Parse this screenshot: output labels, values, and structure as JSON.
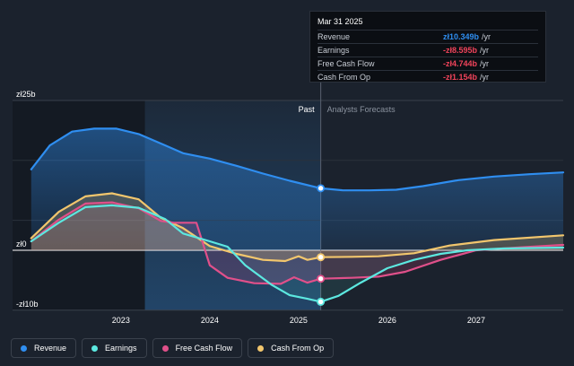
{
  "chart_data": {
    "type": "area",
    "y_ticks": [
      {
        "value": 25,
        "label": "zł25b"
      },
      {
        "value": 0,
        "label": "zł0"
      },
      {
        "value": -10,
        "label": "-zł10b"
      }
    ],
    "x_ticks": [
      {
        "value": 2023,
        "label": "2023"
      },
      {
        "value": 2024,
        "label": "2024"
      },
      {
        "value": 2025,
        "label": "2025"
      },
      {
        "value": 2026,
        "label": "2026"
      },
      {
        "value": 2027,
        "label": "2027"
      }
    ],
    "xlim": [
      2021.78,
      2027.98
    ],
    "ylim": [
      -10,
      25
    ],
    "past_label": "Past",
    "forecast_label": "Analysts Forecasts",
    "past_start": 2023.27,
    "divider_x": 2025.25,
    "grid": true,
    "series": [
      {
        "name": "Revenue",
        "color": "#2f8ef0",
        "points": [
          [
            2021.99,
            13.5
          ],
          [
            2022.2,
            17.5
          ],
          [
            2022.45,
            19.8
          ],
          [
            2022.7,
            20.3
          ],
          [
            2022.95,
            20.3
          ],
          [
            2023.2,
            19.4
          ],
          [
            2023.5,
            17.5
          ],
          [
            2023.7,
            16.2
          ],
          [
            2024.0,
            15.3
          ],
          [
            2024.3,
            14.1
          ],
          [
            2024.6,
            12.8
          ],
          [
            2024.9,
            11.6
          ],
          [
            2025.25,
            10.35
          ],
          [
            2025.5,
            10.0
          ],
          [
            2025.8,
            10.0
          ],
          [
            2026.1,
            10.1
          ],
          [
            2026.4,
            10.7
          ],
          [
            2026.8,
            11.7
          ],
          [
            2027.2,
            12.3
          ],
          [
            2027.6,
            12.7
          ],
          [
            2027.98,
            13.0
          ]
        ]
      },
      {
        "name": "Earnings",
        "color": "#5ce8e0",
        "points": [
          [
            2021.99,
            1.5
          ],
          [
            2022.3,
            4.6
          ],
          [
            2022.6,
            7.2
          ],
          [
            2022.9,
            7.5
          ],
          [
            2023.2,
            7.1
          ],
          [
            2023.5,
            5.2
          ],
          [
            2023.7,
            2.8
          ],
          [
            2024.0,
            1.5
          ],
          [
            2024.2,
            0.6
          ],
          [
            2024.4,
            -2.5
          ],
          [
            2024.7,
            -5.8
          ],
          [
            2024.9,
            -7.5
          ],
          [
            2025.1,
            -8.1
          ],
          [
            2025.25,
            -8.595
          ],
          [
            2025.45,
            -7.6
          ],
          [
            2025.7,
            -5.4
          ],
          [
            2026.0,
            -3.0
          ],
          [
            2026.3,
            -1.6
          ],
          [
            2026.6,
            -0.6
          ],
          [
            2026.9,
            0.0
          ],
          [
            2027.3,
            0.3
          ],
          [
            2027.98,
            0.45
          ]
        ]
      },
      {
        "name": "Free Cash Flow",
        "color": "#e0508a",
        "points": [
          [
            2021.99,
            1.5
          ],
          [
            2022.3,
            5.1
          ],
          [
            2022.6,
            7.8
          ],
          [
            2022.9,
            8.0
          ],
          [
            2023.2,
            7.0
          ],
          [
            2023.45,
            4.9
          ],
          [
            2023.6,
            4.6
          ],
          [
            2023.85,
            4.6
          ],
          [
            2024.0,
            -2.5
          ],
          [
            2024.2,
            -4.6
          ],
          [
            2024.5,
            -5.5
          ],
          [
            2024.8,
            -5.6
          ],
          [
            2024.95,
            -4.5
          ],
          [
            2025.1,
            -5.4
          ],
          [
            2025.25,
            -4.744
          ],
          [
            2025.6,
            -4.6
          ],
          [
            2025.9,
            -4.4
          ],
          [
            2026.2,
            -3.6
          ],
          [
            2026.6,
            -1.6
          ],
          [
            2027.0,
            0.0
          ],
          [
            2027.5,
            0.5
          ],
          [
            2027.98,
            0.9
          ]
        ]
      },
      {
        "name": "Cash From Op",
        "color": "#f2c66d",
        "points": [
          [
            2021.99,
            2.0
          ],
          [
            2022.3,
            6.4
          ],
          [
            2022.6,
            9.0
          ],
          [
            2022.9,
            9.5
          ],
          [
            2023.2,
            8.5
          ],
          [
            2023.45,
            5.4
          ],
          [
            2023.7,
            3.7
          ],
          [
            2024.0,
            0.7
          ],
          [
            2024.3,
            -0.6
          ],
          [
            2024.6,
            -1.6
          ],
          [
            2024.85,
            -1.8
          ],
          [
            2025.0,
            -1.0
          ],
          [
            2025.1,
            -1.6
          ],
          [
            2025.25,
            -1.154
          ],
          [
            2025.6,
            -1.1
          ],
          [
            2025.9,
            -1.0
          ],
          [
            2026.3,
            -0.5
          ],
          [
            2026.7,
            0.8
          ],
          [
            2027.2,
            1.7
          ],
          [
            2027.98,
            2.5
          ]
        ]
      }
    ]
  },
  "tooltip": {
    "date": "Mar 31 2025",
    "rows": [
      {
        "label": "Revenue",
        "value": "zł10.349b",
        "unit": "/yr",
        "color": "#2f8ef0"
      },
      {
        "label": "Earnings",
        "value": "-zł8.595b",
        "unit": "/yr",
        "color": "#f0435a"
      },
      {
        "label": "Free Cash Flow",
        "value": "-zł4.744b",
        "unit": "/yr",
        "color": "#f0435a"
      },
      {
        "label": "Cash From Op",
        "value": "-zł1.154b",
        "unit": "/yr",
        "color": "#f0435a"
      }
    ]
  },
  "legend": [
    {
      "label": "Revenue",
      "color": "#2f8ef0"
    },
    {
      "label": "Earnings",
      "color": "#5ce8e0"
    },
    {
      "label": "Free Cash Flow",
      "color": "#e0508a"
    },
    {
      "label": "Cash From Op",
      "color": "#f2c66d"
    }
  ]
}
